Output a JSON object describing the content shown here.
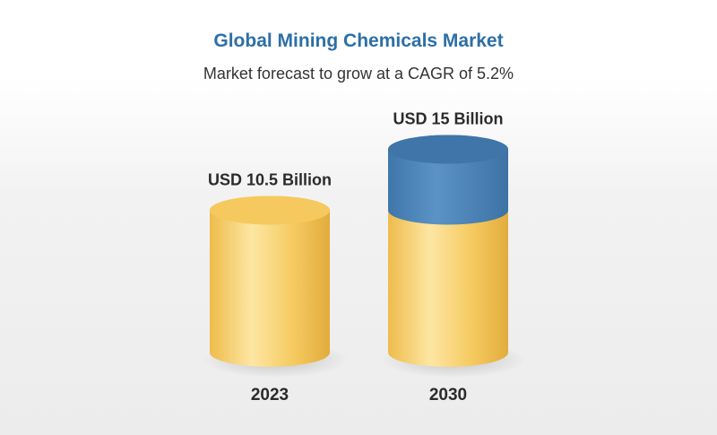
{
  "chart_data": {
    "type": "bar",
    "title": "Global Mining Chemicals Market",
    "subtitle": "Market forecast to grow at a CAGR of 5.2%",
    "categories": [
      "2023",
      "2030"
    ],
    "values": [
      10.5,
      15
    ],
    "value_labels": [
      "USD 10.5 Billion",
      "USD 15 Billion"
    ],
    "growth_segment": {
      "category": "2030",
      "from": 10.5,
      "to": 15
    },
    "xlabel": "",
    "ylabel": "",
    "grid": false,
    "colors": {
      "base": "#f5c95e",
      "base_light": "#fde8a8",
      "base_dark": "#e3b143",
      "growth": "#4f86bb",
      "growth_dark": "#3f75a8",
      "title": "#2d6fa6"
    }
  }
}
